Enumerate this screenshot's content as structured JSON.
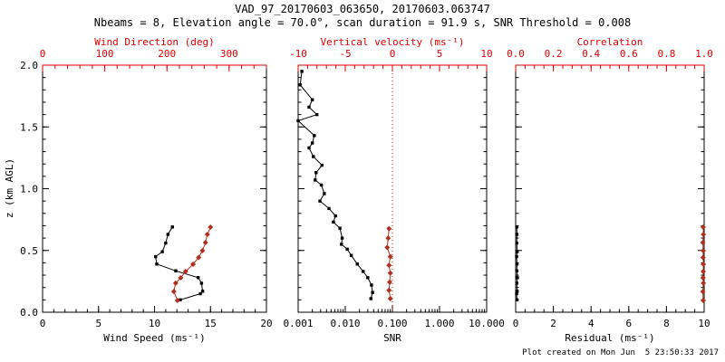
{
  "title": "VAD_97_20170603_063650, 20170603.063747",
  "subtitle": "Nbeams = 8, Elevation angle = 70.0°, scan duration = 91.9 s, SNR Threshold = 0.008",
  "footer": "Plot created on Mon Jun  5 23:50:33 2017",
  "colors": {
    "background": "#ffffff",
    "black": "#000000",
    "axis_red": "#e00000",
    "data_red": "#b03020"
  },
  "y_axis": {
    "label": "z (km AGL)",
    "lim": [
      0,
      2.0
    ],
    "ticks": [
      0.0,
      0.5,
      1.0,
      1.5,
      2.0
    ],
    "tick_labels": [
      "0.0",
      "0.5",
      "1.0",
      "1.5",
      "2.0"
    ],
    "minor_step": 0.1
  },
  "chart_data": [
    {
      "id": "wind",
      "type": "scatter",
      "bottom_axis": {
        "label": "Wind Speed (ms⁻¹)",
        "lim": [
          0,
          20
        ],
        "ticks": [
          0,
          5,
          10,
          15,
          20
        ],
        "tick_labels": [
          "0",
          "5",
          "10",
          "15",
          "20"
        ],
        "minor_step": 1,
        "scale": "linear"
      },
      "top_axis": {
        "label": "Wind Direction (deg)",
        "lim": [
          0,
          360
        ],
        "ticks": [
          0,
          100,
          200,
          300
        ],
        "tick_labels": [
          "0",
          "100",
          "200",
          "300"
        ],
        "minor_step": 20
      },
      "series": [
        {
          "name": "wind-speed",
          "axis": "bottom",
          "color": "black",
          "marker": "square",
          "z": [
            0.1,
            0.15,
            0.17,
            0.235,
            0.28,
            0.335,
            0.39,
            0.45,
            0.49,
            0.56,
            0.63,
            0.69
          ],
          "v": [
            12.3,
            14.1,
            14.3,
            14.2,
            13.9,
            11.9,
            10.2,
            10.1,
            10.7,
            11.0,
            11.2,
            11.6
          ]
        },
        {
          "name": "wind-direction",
          "axis": "top",
          "color": "data_red",
          "marker": "diamond",
          "z": [
            0.095,
            0.168,
            0.235,
            0.278,
            0.33,
            0.388,
            0.443,
            0.498,
            0.564,
            0.63,
            0.689
          ],
          "v": [
            217,
            211,
            214,
            222,
            230,
            242,
            251,
            257,
            262,
            265,
            270
          ]
        }
      ]
    },
    {
      "id": "snr",
      "type": "scatter",
      "bottom_axis": {
        "label": "SNR",
        "lim": [
          0.001,
          10
        ],
        "ticks": [
          0.001,
          0.01,
          0.1,
          1,
          10
        ],
        "tick_labels": [
          "0.001",
          "0.010",
          "0.100",
          "1.000",
          "10.000"
        ],
        "scale": "log"
      },
      "top_axis": {
        "label": "Vertical velocity (ms⁻¹)",
        "lim": [
          -10,
          10
        ],
        "ticks": [
          -10,
          -5,
          0,
          5,
          10
        ],
        "tick_labels": [
          "-10",
          "-5",
          "0",
          "5",
          "10"
        ],
        "minor_step": 1,
        "refline": 0
      },
      "series": [
        {
          "name": "snr",
          "axis": "bottom",
          "color": "black",
          "marker": "square",
          "z": [
            1.95,
            1.84,
            1.72,
            1.66,
            1.6,
            1.55,
            1.43,
            1.37,
            1.33,
            1.26,
            1.19,
            1.13,
            1.07,
            1.03,
            0.96,
            0.9,
            0.84,
            0.78,
            0.73,
            0.68,
            0.6,
            0.55,
            0.51,
            0.46,
            0.39,
            0.33,
            0.28,
            0.22,
            0.16,
            0.11
          ],
          "v": [
            0.0012,
            0.0011,
            0.002,
            0.0017,
            0.0025,
            0.001,
            0.0022,
            0.002,
            0.0017,
            0.0021,
            0.0032,
            0.0024,
            0.0023,
            0.0031,
            0.0036,
            0.0029,
            0.0045,
            0.0062,
            0.0056,
            0.0077,
            0.0086,
            0.0083,
            0.011,
            0.0134,
            0.018,
            0.024,
            0.03,
            0.036,
            0.038,
            0.035
          ]
        },
        {
          "name": "vertical-velocity",
          "axis": "top",
          "color": "data_red",
          "marker": "diamond",
          "z": [
            0.11,
            0.178,
            0.244,
            0.317,
            0.38,
            0.45,
            0.525,
            0.6,
            0.677
          ],
          "v": [
            -0.22,
            -0.36,
            -0.29,
            -0.22,
            -0.36,
            -0.22,
            -0.55,
            -0.45,
            -0.36
          ]
        }
      ]
    },
    {
      "id": "residual",
      "type": "scatter",
      "bottom_axis": {
        "label": "Residual (ms⁻¹)",
        "lim": [
          0,
          10
        ],
        "ticks": [
          0,
          2,
          4,
          6,
          8,
          10
        ],
        "tick_labels": [
          "0",
          "2",
          "4",
          "6",
          "8",
          "10"
        ],
        "minor_step": 0.5,
        "scale": "linear"
      },
      "top_axis": {
        "label": "Correlation",
        "lim": [
          0,
          1
        ],
        "ticks": [
          0.0,
          0.2,
          0.4,
          0.6,
          0.8,
          1.0
        ],
        "tick_labels": [
          "0.0",
          "0.2",
          "0.4",
          "0.6",
          "0.8",
          "1.0"
        ],
        "minor_step": 0.05
      },
      "series": [
        {
          "name": "residual",
          "axis": "bottom",
          "color": "black",
          "marker": "square",
          "z": [
            0.1,
            0.15,
            0.17,
            0.235,
            0.28,
            0.335,
            0.39,
            0.45,
            0.49,
            0.56,
            0.63,
            0.69
          ],
          "v": [
            0.07,
            0.05,
            0.08,
            0.06,
            0.09,
            0.06,
            0.07,
            0.05,
            0.08,
            0.06,
            0.07,
            0.06
          ]
        },
        {
          "name": "correlation",
          "axis": "top",
          "color": "data_red",
          "marker": "diamond",
          "z": [
            0.095,
            0.168,
            0.235,
            0.278,
            0.33,
            0.388,
            0.443,
            0.498,
            0.564,
            0.63,
            0.689
          ],
          "v": [
            0.995,
            0.993,
            0.996,
            0.994,
            0.995,
            0.996,
            0.994,
            0.995,
            0.993,
            0.996,
            0.995
          ]
        }
      ]
    }
  ]
}
